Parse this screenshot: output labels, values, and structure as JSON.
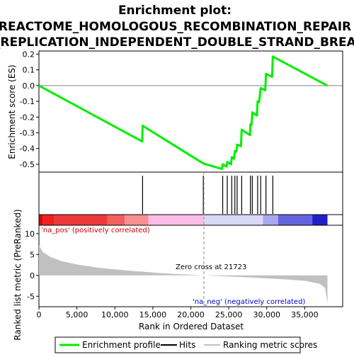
{
  "chart_data": {
    "type": "line",
    "title": "Enrichment plot:",
    "subtitle_lines": [
      "REACTOME_HOMOLOGOUS_RECOMBINATION_REPAIR",
      "OF_REPLICATION_INDEPENDENT_DOUBLE_STRAND_BREAKS"
    ],
    "es_panel": {
      "ylabel": "Enrichment score (ES)",
      "ylim": [
        -0.55,
        0.22
      ],
      "yticks": [
        0.2,
        0.1,
        0.0,
        -0.1,
        -0.2,
        -0.3,
        -0.4,
        -0.5
      ],
      "ytick_labels": [
        "0.2",
        "0.1",
        "0.0",
        "-0.1",
        "-0.2",
        "-0.3",
        "-0.4",
        "-0.5"
      ],
      "series": [
        {
          "name": "Enrichment profile",
          "color": "#00ee00",
          "points": [
            [
              0,
              0.0
            ],
            [
              13600,
              -0.355
            ],
            [
              13650,
              -0.255
            ],
            [
              21650,
              -0.495
            ],
            [
              24100,
              -0.53
            ],
            [
              24200,
              -0.5
            ],
            [
              24700,
              -0.515
            ],
            [
              24800,
              -0.485
            ],
            [
              25300,
              -0.5
            ],
            [
              25400,
              -0.455
            ],
            [
              25700,
              -0.465
            ],
            [
              25800,
              -0.415
            ],
            [
              26000,
              -0.42
            ],
            [
              26100,
              -0.375
            ],
            [
              26600,
              -0.385
            ],
            [
              26700,
              -0.28
            ],
            [
              27800,
              -0.315
            ],
            [
              27850,
              -0.245
            ],
            [
              28000,
              -0.25
            ],
            [
              28100,
              -0.17
            ],
            [
              28700,
              -0.19
            ],
            [
              28800,
              -0.1
            ],
            [
              29000,
              -0.105
            ],
            [
              29200,
              -0.015
            ],
            [
              29800,
              -0.03
            ],
            [
              29900,
              0.075
            ],
            [
              30700,
              0.055
            ],
            [
              30800,
              0.185
            ],
            [
              38000,
              0.0
            ]
          ]
        }
      ]
    },
    "hits": {
      "name": "Hits",
      "color": "#000000",
      "positions": [
        13650,
        21650,
        24200,
        24800,
        25400,
        25800,
        26100,
        26700,
        27850,
        28100,
        28800,
        29200,
        29900,
        30800
      ]
    },
    "metric_panel": {
      "xlabel": "Rank in Ordered Dataset",
      "ylabel": "Ranked list metric (PreRanked)",
      "ylim": [
        -7.5,
        12
      ],
      "yticks": [
        10,
        5,
        0,
        -5
      ],
      "ytick_labels": [
        "10",
        "5",
        "0",
        "-5"
      ],
      "xlim": [
        0,
        40000
      ],
      "xticks": [
        0,
        5000,
        10000,
        15000,
        20000,
        25000,
        30000,
        35000
      ],
      "xtick_labels": [
        "0",
        "5,000",
        "10,000",
        "15,000",
        "20,000",
        "25,000",
        "30,000",
        "35,000"
      ],
      "series": [
        {
          "name": "Ranking metric scores",
          "color": "#c0c0c0",
          "points": [
            [
              0,
              7.2
            ],
            [
              500,
              5.6
            ],
            [
              1500,
              4.4
            ],
            [
              3000,
              3.4
            ],
            [
              5000,
              2.6
            ],
            [
              8000,
              1.8
            ],
            [
              12000,
              1.1
            ],
            [
              16000,
              0.55
            ],
            [
              20000,
              0.15
            ],
            [
              21723,
              0.0
            ],
            [
              24000,
              -0.2
            ],
            [
              28000,
              -0.5
            ],
            [
              32000,
              -0.9
            ],
            [
              35000,
              -1.3
            ],
            [
              37000,
              -2.0
            ],
            [
              37700,
              -3.0
            ],
            [
              38000,
              -6.8
            ]
          ]
        }
      ],
      "annotations": {
        "pos_label": "'na_pos' (positively correlated)",
        "neg_label": "'na_neg' (negatively correlated)",
        "zero_cross": "Zero cross at 21723",
        "zero_cross_rank": 21723
      }
    },
    "colorbar": {
      "segments": [
        {
          "from": 0,
          "to": 500,
          "color": "#e00000"
        },
        {
          "from": 500,
          "to": 2000,
          "color": "#f02020"
        },
        {
          "from": 2000,
          "to": 9000,
          "color": "#ee3a3a"
        },
        {
          "from": 9000,
          "to": 11300,
          "color": "#f46060"
        },
        {
          "from": 11300,
          "to": 14400,
          "color": "#f89090"
        },
        {
          "from": 14400,
          "to": 21700,
          "color": "#fbbde8"
        },
        {
          "from": 21700,
          "to": 29500,
          "color": "#d9d9f6"
        },
        {
          "from": 29500,
          "to": 31500,
          "color": "#a8a8ee"
        },
        {
          "from": 31500,
          "to": 36000,
          "color": "#6464e0"
        },
        {
          "from": 36000,
          "to": 38000,
          "color": "#2020c8"
        }
      ]
    },
    "legend": {
      "placement": "bottom",
      "items": [
        {
          "label": "Enrichment profile",
          "color": "#00ee00"
        },
        {
          "label": "Hits",
          "color": "#000000"
        },
        {
          "label": "Ranking metric scores",
          "color": "#c0c0c0"
        }
      ]
    },
    "colors": {
      "pos_text": "#cc0000",
      "neg_text": "#0000cc",
      "zero_line": "#888888",
      "axis": "#000000"
    }
  }
}
